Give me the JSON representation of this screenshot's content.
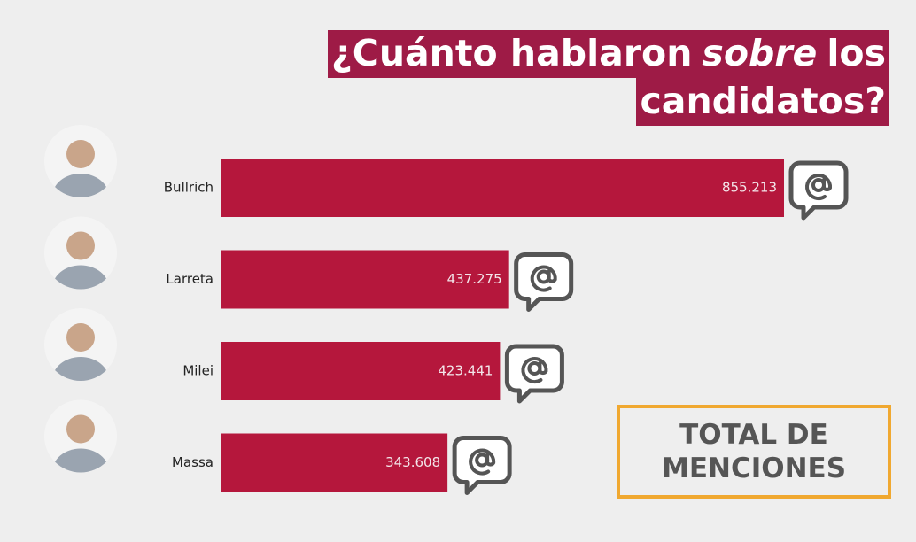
{
  "chart_data": {
    "type": "bar",
    "orientation": "horizontal",
    "title": [
      "¿Cuánto hablaron",
      "sobre",
      "los",
      "candidatos?"
    ],
    "categories": [
      "Bullrich",
      "Larreta",
      "Milei",
      "Massa"
    ],
    "values": [
      855213,
      437275,
      423441,
      343608
    ],
    "value_labels": [
      "855.213",
      "437.275",
      "423.441",
      "343.608"
    ],
    "color": "#b5173c",
    "box_label": [
      "TOTAL DE",
      "MENCIONES"
    ]
  }
}
